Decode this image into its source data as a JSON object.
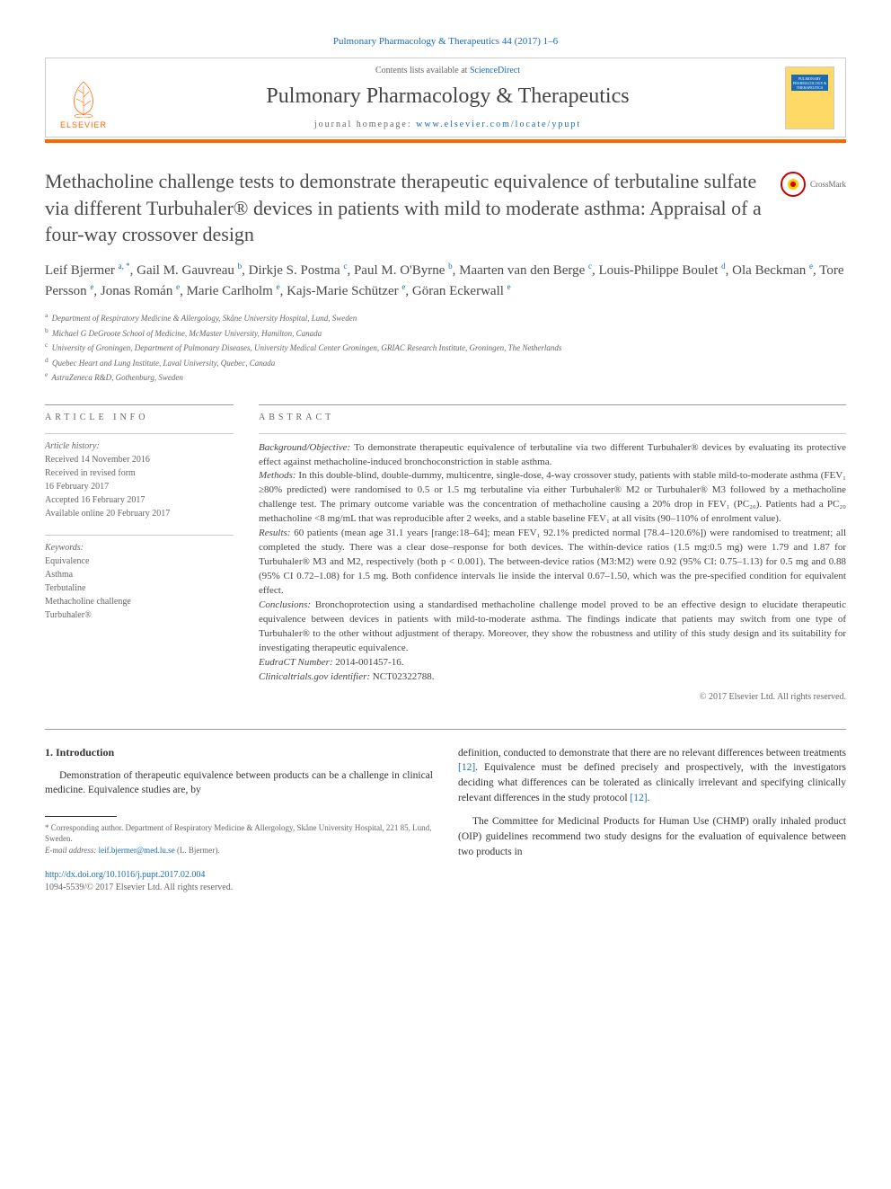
{
  "colors": {
    "link": "#1a6bb3",
    "accent": "#ff6600",
    "text": "#333333",
    "muted": "#666666",
    "border": "#cccccc"
  },
  "header": {
    "citation": "Pulmonary Pharmacology & Therapeutics 44 (2017) 1–6",
    "contents_prefix": "Contents lists available at ",
    "contents_link": "ScienceDirect",
    "journal_name": "Pulmonary Pharmacology & Therapeutics",
    "homepage_prefix": "journal homepage: ",
    "homepage_url": "www.elsevier.com/locate/ypupt",
    "elsevier_label": "ELSEVIER",
    "cover_text": "PULMONARY PHARMACOLOGY & THERAPEUTICS"
  },
  "crossmark": {
    "label": "CrossMark"
  },
  "article": {
    "title": "Methacholine challenge tests to demonstrate therapeutic equivalence of terbutaline sulfate via different Turbuhaler® devices in patients with mild to moderate asthma: Appraisal of a four-way crossover design"
  },
  "authors_html": "Leif Bjermer <sup>a, *</sup>, Gail M. Gauvreau <sup>b</sup>, Dirkje S. Postma <sup>c</sup>, Paul M. O'Byrne <sup>b</sup>, Maarten van den Berge <sup>c</sup>, Louis-Philippe Boulet <sup>d</sup>, Ola Beckman <sup>e</sup>, Tore Persson <sup>e</sup>, Jonas Román <sup>e</sup>, Marie Carlholm <sup>e</sup>, Kajs-Marie Schützer <sup>e</sup>, Göran Eckerwall <sup>e</sup>",
  "affiliations": [
    {
      "sup": "a",
      "text": "Department of Respiratory Medicine & Allergology, Skåne University Hospital, Lund, Sweden"
    },
    {
      "sup": "b",
      "text": "Michael G DeGroote School of Medicine, McMaster University, Hamilton, Canada"
    },
    {
      "sup": "c",
      "text": "University of Groningen, Department of Pulmonary Diseases, University Medical Center Groningen, GRIAC Research Institute, Groningen, The Netherlands"
    },
    {
      "sup": "d",
      "text": "Quebec Heart and Lung Institute, Laval University, Quebec, Canada"
    },
    {
      "sup": "e",
      "text": "AstraZeneca R&D, Gothenburg, Sweden"
    }
  ],
  "article_info": {
    "heading": "article info",
    "history_label": "Article history:",
    "history": [
      "Received 14 November 2016",
      "Received in revised form",
      "16 February 2017",
      "Accepted 16 February 2017",
      "Available online 20 February 2017"
    ],
    "keywords_label": "Keywords:",
    "keywords": [
      "Equivalence",
      "Asthma",
      "Terbutaline",
      "Methacholine challenge",
      "Turbuhaler®"
    ]
  },
  "abstract": {
    "heading": "abstract",
    "segments": [
      {
        "label": "Background/Objective:",
        "text": " To demonstrate therapeutic equivalence of terbutaline via two different Turbuhaler® devices by evaluating its protective effect against methacholine-induced bronchoconstriction in stable asthma."
      },
      {
        "label": "Methods:",
        "text": " In this double-blind, double-dummy, multicentre, single-dose, 4-way crossover study, patients with stable mild-to-moderate asthma (FEV₁ ≥80% predicted) were randomised to 0.5 or 1.5 mg terbutaline via either Turbuhaler® M2 or Turbuhaler® M3 followed by a methacholine challenge test. The primary outcome variable was the concentration of methacholine causing a 20% drop in FEV₁ (PC₂₀). Patients had a PC₂₀ methacholine <8 mg/mL that was reproducible after 2 weeks, and a stable baseline FEV₁ at all visits (90–110% of enrolment value)."
      },
      {
        "label": "Results:",
        "text": " 60 patients (mean age 31.1 years [range:18–64]; mean FEV₁ 92.1% predicted normal [78.4–120.6%]) were randomised to treatment; all completed the study. There was a clear dose–response for both devices. The within-device ratios (1.5 mg:0.5 mg) were 1.79 and 1.87 for Turbuhaler® M3 and M2, respectively (both p < 0.001). The between-device ratios (M3:M2) were 0.92 (95% CI: 0.75–1.13) for 0.5 mg and 0.88 (95% CI 0.72–1.08) for 1.5 mg. Both confidence intervals lie inside the interval 0.67–1.50, which was the pre-specified condition for equivalent effect."
      },
      {
        "label": "Conclusions:",
        "text": " Bronchoprotection using a standardised methacholine challenge model proved to be an effective design to elucidate therapeutic equivalence between devices in patients with mild-to-moderate asthma. The findings indicate that patients may switch from one type of Turbuhaler® to the other without adjustment of therapy. Moreover, they show the robustness and utility of this study design and its suitability for investigating therapeutic equivalence."
      },
      {
        "label": "EudraCT Number:",
        "text": " 2014-001457-16."
      },
      {
        "label": "Clinicaltrials.gov identifier:",
        "text": " NCT02322788."
      }
    ],
    "copyright": "© 2017 Elsevier Ltd. All rights reserved."
  },
  "body": {
    "section_number": "1.",
    "section_title": "Introduction",
    "left_para": "Demonstration of therapeutic equivalence between products can be a challenge in clinical medicine. Equivalence studies are, by",
    "right_para1_pre": "definition, conducted to demonstrate that there are no relevant differences between treatments ",
    "right_ref1": "[12]",
    "right_para1_mid": ". Equivalence must be defined precisely and prospectively, with the investigators deciding what differences can be tolerated as clinically irrelevant and specifying clinically relevant differences in the study protocol ",
    "right_ref2": "[12]",
    "right_para1_post": ".",
    "right_para2": "The Committee for Medicinal Products for Human Use (CHMP) orally inhaled product (OIP) guidelines recommend two study designs for the evaluation of equivalence between two products in"
  },
  "footnotes": {
    "corresponding": "* Corresponding author. Department of Respiratory Medicine & Allergology, Skåne University Hospital, 221 85, Lund, Sweden.",
    "email_label": "E-mail address:",
    "email": "leif.bjermer@med.lu.se",
    "email_attribution": "(L. Bjermer)."
  },
  "doi": {
    "url": "http://dx.doi.org/10.1016/j.pupt.2017.02.004",
    "issn_line": "1094-5539/© 2017 Elsevier Ltd. All rights reserved."
  }
}
